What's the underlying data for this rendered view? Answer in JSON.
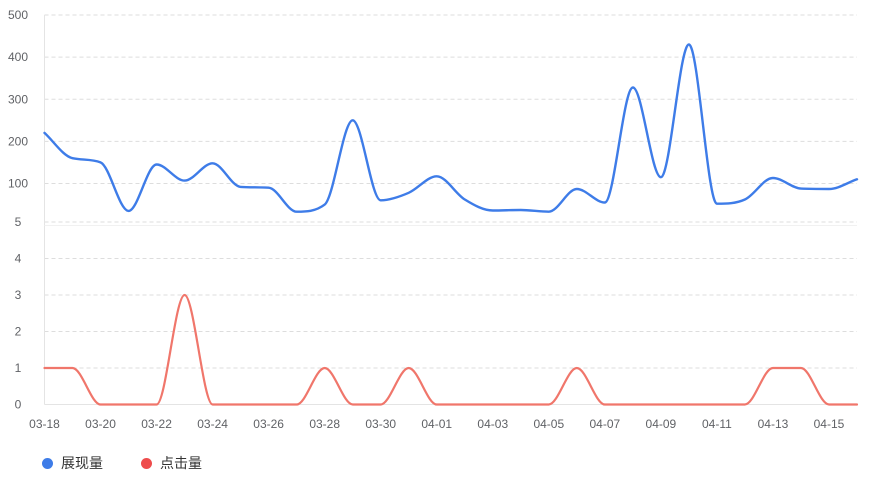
{
  "chart_data": {
    "type": "line",
    "title": "",
    "categories": [
      "03-18",
      "03-19",
      "03-20",
      "03-21",
      "03-22",
      "03-23",
      "03-24",
      "03-25",
      "03-26",
      "03-27",
      "03-28",
      "03-29",
      "03-30",
      "03-31",
      "04-01",
      "04-02",
      "04-03",
      "04-04",
      "04-05",
      "04-06",
      "04-07",
      "04-08",
      "04-09",
      "04-10",
      "04-11",
      "04-12",
      "04-13",
      "04-14",
      "04-15",
      "04-16"
    ],
    "x_axis": {
      "tick_labels": [
        "03-18",
        "03-20",
        "03-22",
        "03-24",
        "03-26",
        "03-28",
        "03-30",
        "04-01",
        "04-03",
        "04-05",
        "04-07",
        "04-09",
        "04-11",
        "04-13",
        "04-15"
      ]
    },
    "y_axis_top": {
      "ticks": [
        500,
        400,
        300,
        200,
        100
      ],
      "range": [
        0,
        500
      ]
    },
    "y_axis_bottom": {
      "ticks": [
        5,
        4,
        3,
        2,
        1,
        0
      ],
      "range": [
        0,
        5
      ]
    },
    "series": [
      {
        "name": "展现量",
        "axis": "top",
        "color": "#3E7CE8",
        "values": [
          220,
          160,
          150,
          35,
          145,
          107,
          148,
          92,
          90,
          33,
          50,
          250,
          60,
          78,
          117,
          62,
          36,
          37,
          33,
          87,
          55,
          328,
          115,
          430,
          52,
          62,
          113,
          88,
          87,
          110
        ]
      },
      {
        "name": "点击量",
        "axis": "bottom",
        "color": "#F0766B",
        "values": [
          1,
          1,
          0,
          0,
          0,
          3,
          0,
          0,
          0,
          0,
          1,
          0,
          0,
          1,
          0,
          0,
          0,
          0,
          0,
          1,
          0,
          0,
          0,
          0,
          0,
          0,
          1,
          1,
          0,
          0
        ]
      }
    ],
    "legend": [
      {
        "label": "展现量",
        "color": "#3E7CE8"
      },
      {
        "label": "点击量",
        "color": "#EE4C4C"
      }
    ],
    "style": {
      "grid_color": "#DDDDDD",
      "axis_color": "#E4E4E4",
      "tick_text_color": "#606266",
      "background": "#FFFFFF"
    },
    "layout_hints": {
      "grid": "dashed horizontal",
      "legend_position": "bottom-left",
      "smooth": true
    }
  }
}
